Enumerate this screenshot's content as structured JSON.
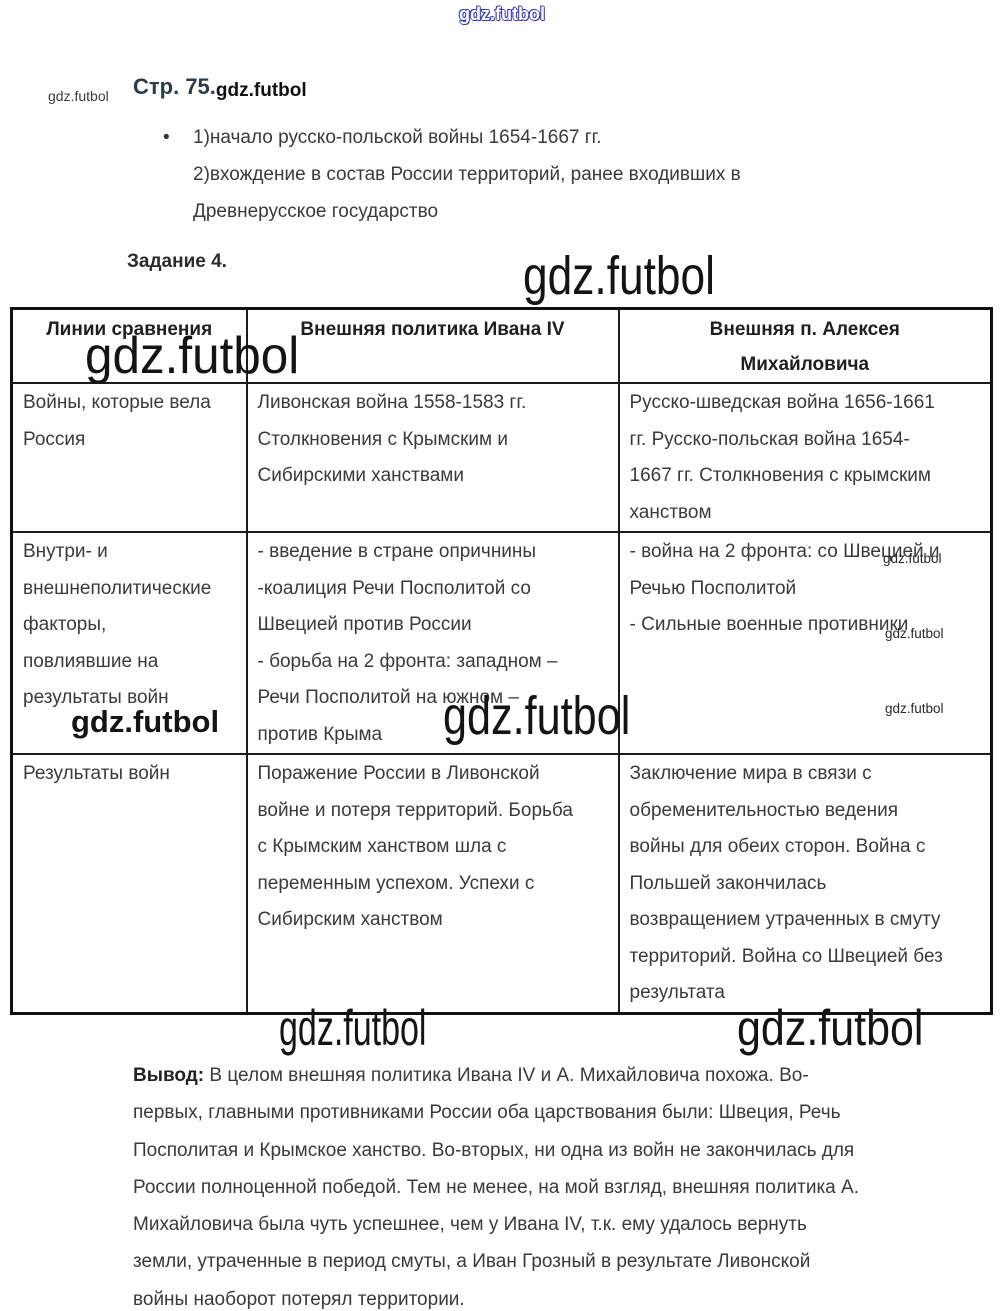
{
  "page": {
    "heading": "Стр. 75.",
    "task_heading": "Задание 4."
  },
  "bullet_list": {
    "marker": "•",
    "items": [
      {
        "text": "1)начало русско-польской войны 1654-1667 гг.\n2)вхождение в состав России территорий, ранее входивших в\nДревнерусское государство"
      }
    ]
  },
  "table": {
    "headers": [
      "Линии сравнения",
      "Внешняя политика Ивана IV",
      "Внешняя п. Алексея\nМихайловича"
    ],
    "rows": [
      {
        "cells": [
          "Войны, которые вела\nРоссия",
          "Ливонская война 1558-1583 гг.\nСтолкновения с Крымским и\nСибирскими ханствами",
          "Русско-шведская война 1656-1661\nгг. Русско-польская война 1654-\n1667 гг. Столкновения с крымским\nханством"
        ]
      },
      {
        "cells": [
          "Внутри- и\nвнешнеполитические\nфакторы,\nповлиявшие на\nрезультаты войн",
          "- введение в стране опричнины\n-коалиция Речи Посполитой со\nШвецией против России\n- борьба на 2 фронта: западном –\nРечи Посполитой на южном –\nпротив Крыма",
          "- война на 2 фронта: со Швецией и\nРечью Посполитой\n- Сильные военные противники"
        ]
      },
      {
        "cells": [
          "Результаты войн",
          "Поражение России в Ливонской\nвойне и потеря территорий. Борьба\nс Крымским ханством шла с\nпеременным успехом. Успехи с\nСибирским ханством",
          "Заключение мира в связи с\nобременительностью ведения\nвойны для обеих сторон. Война с\nПольшей закончилась\nвозвращением утраченных в смуту\nтерриторий. Война со Швецией без\nрезультата"
        ]
      }
    ]
  },
  "conclusion": {
    "label": "Вывод:",
    "text": "В целом внешняя политика Ивана IV и А. Михайловича похожа. Во-\nпервых, главными противниками России оба царствования были: Швеция, Речь\nПосполитая и Крымское ханство. Во-вторых, ни одна из войн не закончилась для\nРоссии полноценной победой. Тем не менее, на мой взгляд, внешняя политика А.\nМихайловича была чуть успешнее, чем у Ивана IV, т.к. ему удалось вернуть\nземли, утраченные в период смуты, а Иван Грозный в результате Ливонской\nвойны наоборот потерял территории."
  },
  "watermarks": {
    "top": "gdz.futbol",
    "page_left": "gdz.futbol",
    "after_heading": "gdz.futbol",
    "task_row": "gdz.futbol",
    "table_header": "gdz.futbol",
    "row2_left": "gdz.futbol",
    "row2_center": "gdz.futbol",
    "row2_right_1": "gdz.futbol",
    "row2_right_2": "gdz.futbol",
    "row2_right_3": "gdz.futbol",
    "below_table_left": "gdz.futbol",
    "below_table_right": "gdz.futbol"
  }
}
